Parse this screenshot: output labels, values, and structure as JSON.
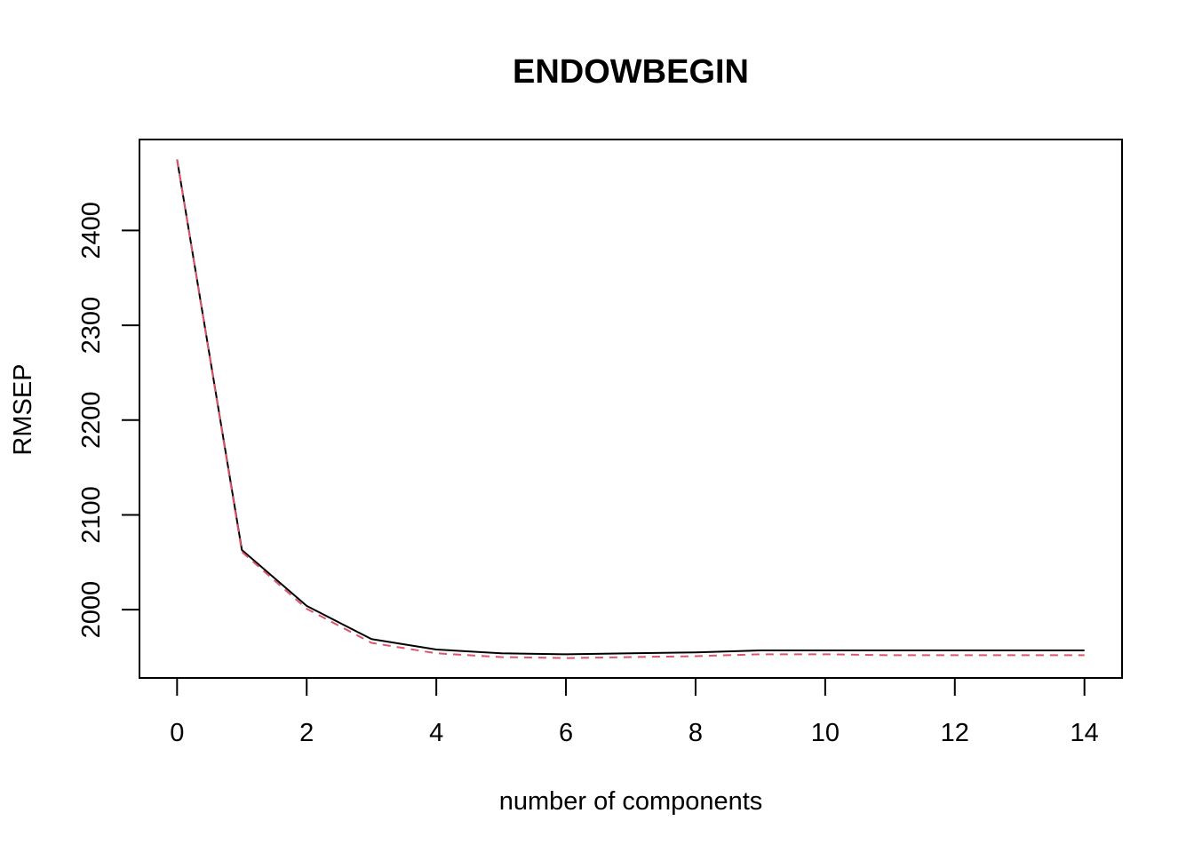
{
  "chart_data": {
    "type": "line",
    "title": "ENDOWBEGIN",
    "xlabel": "number of components",
    "ylabel": "RMSEP",
    "xlim": [
      -0.58,
      14.58
    ],
    "ylim": [
      1928,
      2496
    ],
    "x_ticks": [
      0,
      2,
      4,
      6,
      8,
      10,
      12,
      14
    ],
    "y_ticks": [
      2000,
      2100,
      2200,
      2300,
      2400
    ],
    "grid": false,
    "legend": "none",
    "x": [
      0,
      1,
      2,
      3,
      4,
      5,
      6,
      7,
      8,
      9,
      10,
      11,
      12,
      13,
      14
    ],
    "series": [
      {
        "color": "#000000",
        "dash": "solid",
        "values": [
          2475,
          2063,
          2004,
          1969,
          1958,
          1954,
          1953,
          1954,
          1955,
          1957,
          1957,
          1957,
          1957,
          1957,
          1957
        ]
      },
      {
        "color": "#DF536B",
        "dash": "dashed",
        "values": [
          2475,
          2061,
          2001,
          1965,
          1954,
          1950,
          1949,
          1950,
          1951,
          1953,
          1953,
          1952,
          1952,
          1952,
          1952
        ]
      }
    ]
  }
}
